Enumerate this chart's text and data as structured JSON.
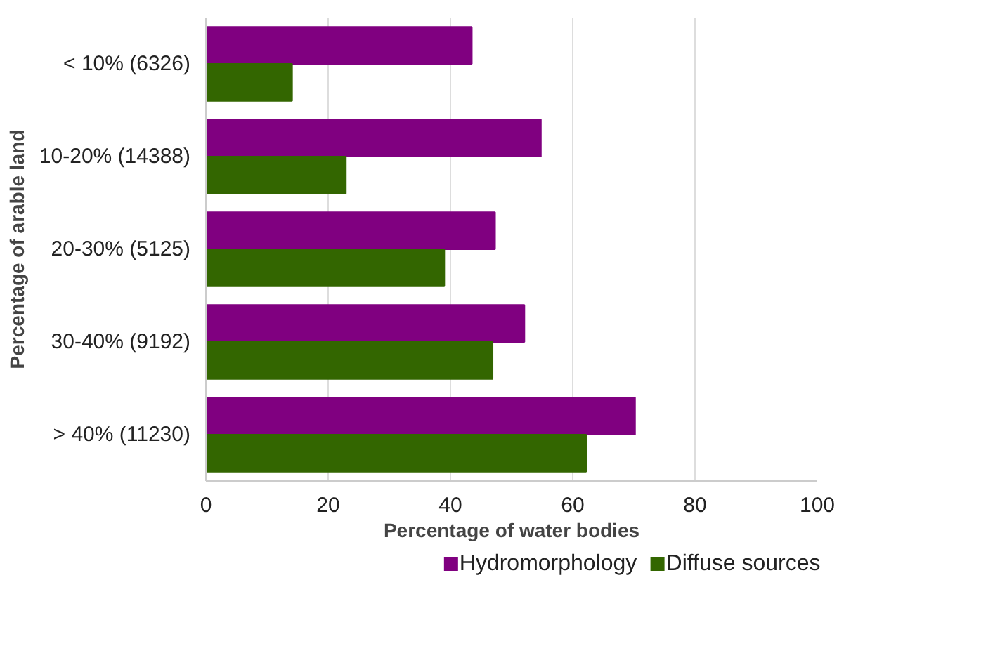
{
  "chart_data": {
    "type": "bar",
    "orientation": "horizontal",
    "xlabel": "Percentage of water bodies",
    "ylabel": "Percentage of arable land",
    "categories": [
      "< 10% (6326)",
      "10-20% (14388)",
      "20-30% (5125)",
      "30-40% (9192)",
      "> 40% (11230)"
    ],
    "series": [
      {
        "name": "Hydromorphology",
        "color": "#800080",
        "values": [
          43.5,
          54.8,
          47.3,
          52.1,
          70.2
        ]
      },
      {
        "name": "Diffuse sources",
        "color": "#336600",
        "values": [
          14.1,
          22.9,
          39.0,
          46.9,
          62.2
        ]
      }
    ],
    "xlim": [
      0,
      100
    ],
    "xticks": [
      0,
      20,
      40,
      60,
      80,
      100
    ],
    "grid": "x",
    "legend": "bottom"
  }
}
